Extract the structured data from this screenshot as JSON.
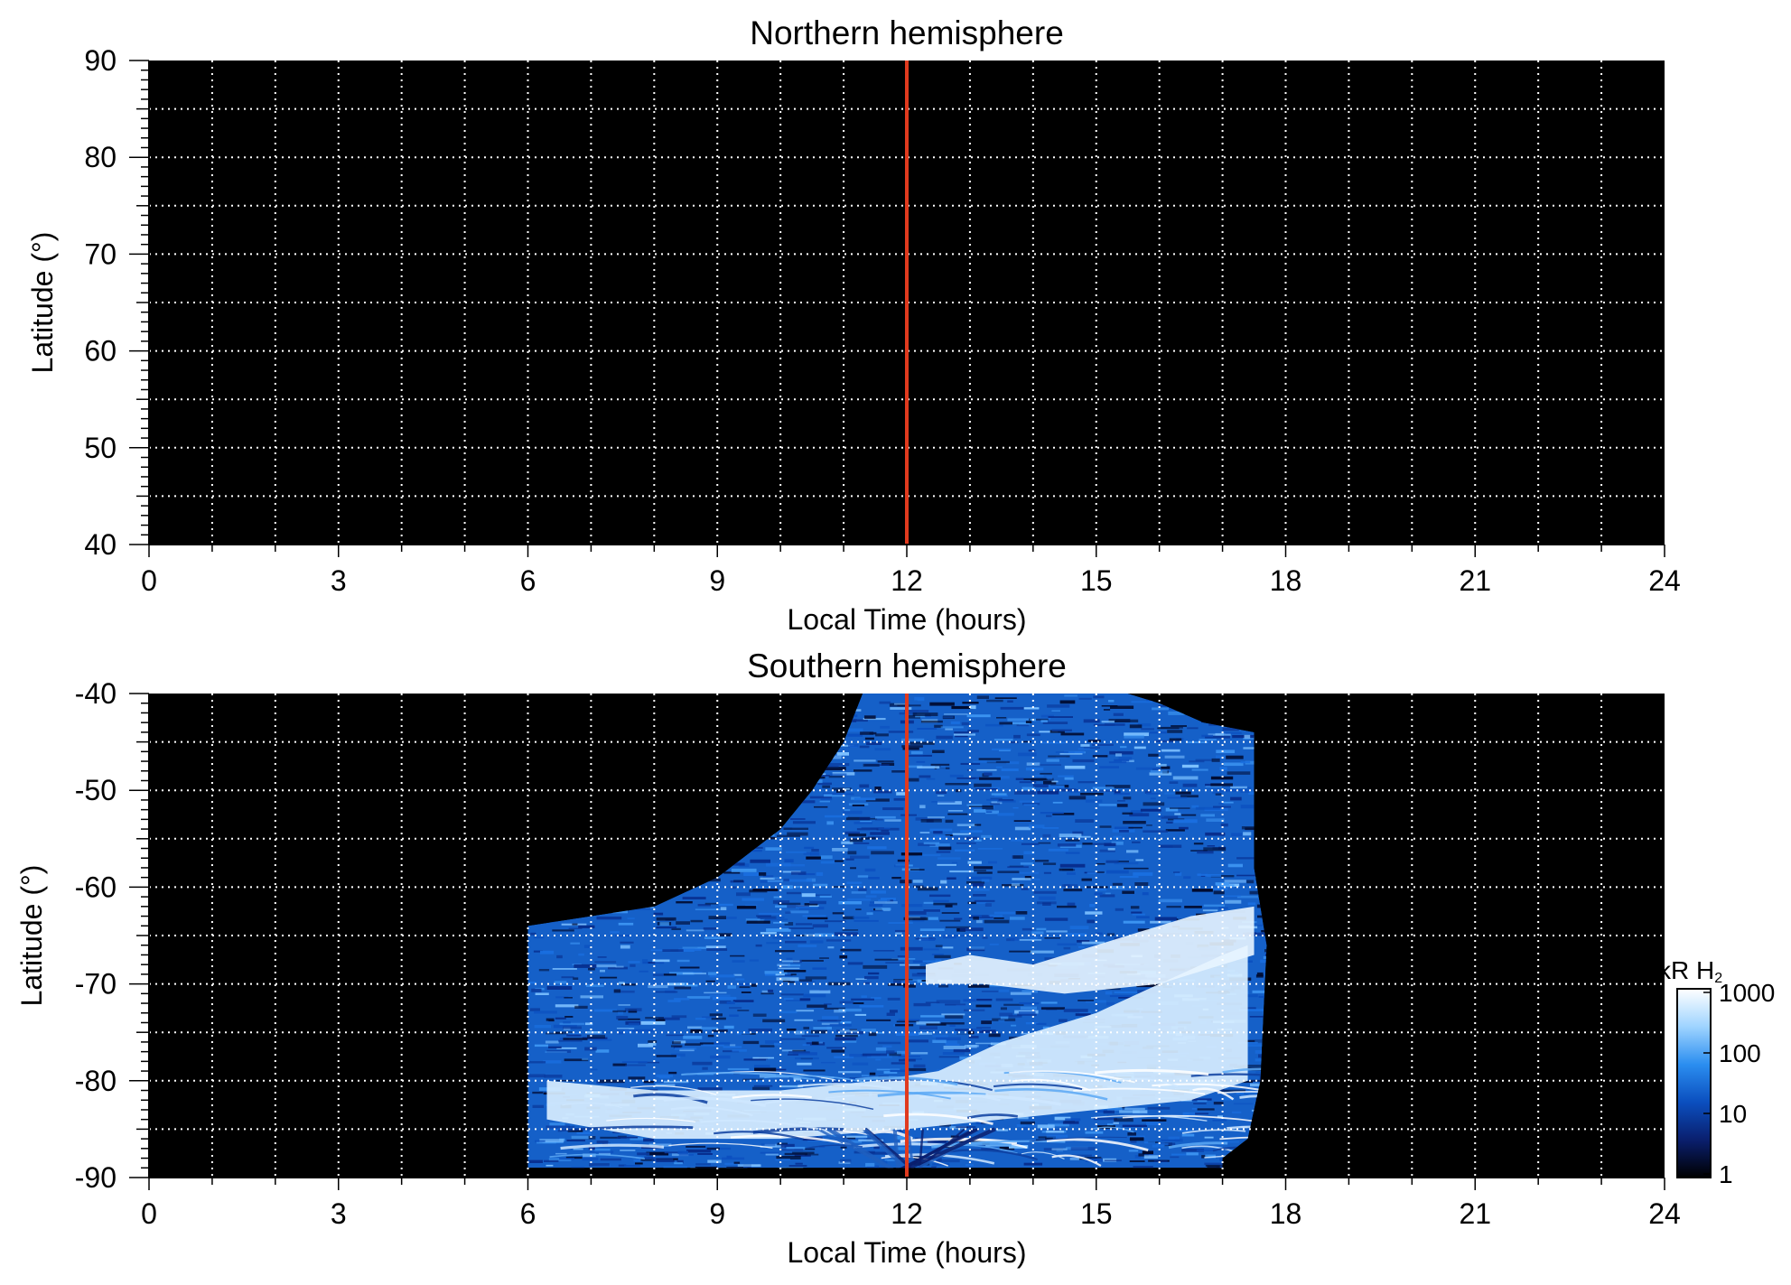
{
  "chart_data": [
    {
      "type": "heatmap",
      "title": "Northern hemisphere",
      "xlabel": "Local Time (hours)",
      "ylabel": "Latitude (°)",
      "xlim": [
        0,
        24
      ],
      "ylim": [
        40,
        90
      ],
      "xticks": [
        "0",
        "3",
        "6",
        "9",
        "12",
        "15",
        "18",
        "21",
        "24"
      ],
      "yticks": [
        "40",
        "50",
        "60",
        "70",
        "80",
        "90"
      ],
      "grid": true,
      "background": "#000000",
      "marker_line": {
        "x": 12,
        "color": "#e03a1e"
      },
      "emission_region": null
    },
    {
      "type": "heatmap",
      "title": "Southern hemisphere",
      "xlabel": "Local Time (hours)",
      "ylabel": "Latitude (°)",
      "xlim": [
        0,
        24
      ],
      "ylim": [
        -90,
        -40
      ],
      "xticks": [
        "0",
        "3",
        "6",
        "9",
        "12",
        "15",
        "18",
        "21",
        "24"
      ],
      "yticks": [
        "-40",
        "-50",
        "-60",
        "-70",
        "-80",
        "-90"
      ],
      "grid": true,
      "background": "#000000",
      "marker_line": {
        "x": 12,
        "color": "#e03a1e"
      },
      "emission_region": {
        "lower_boundary_lat": -89,
        "upper_boundary": [
          [
            6.0,
            -64
          ],
          [
            7.0,
            -63
          ],
          [
            8.0,
            -62
          ],
          [
            9.0,
            -59
          ],
          [
            10.0,
            -54
          ],
          [
            10.5,
            -50
          ],
          [
            11.0,
            -45
          ],
          [
            11.3,
            -40
          ],
          [
            15.5,
            -40
          ],
          [
            16.0,
            -41
          ],
          [
            16.7,
            -43
          ],
          [
            17.5,
            -44
          ],
          [
            17.5,
            -58
          ],
          [
            17.7,
            -66
          ],
          [
            17.6,
            -80
          ],
          [
            17.4,
            -86
          ],
          [
            17.0,
            -88
          ]
        ],
        "bright_band_upper": [
          [
            6.3,
            -80
          ],
          [
            8.0,
            -81
          ],
          [
            10.0,
            -81
          ],
          [
            11.5,
            -80
          ],
          [
            12.5,
            -79
          ],
          [
            13.5,
            -76
          ],
          [
            15.0,
            -73
          ],
          [
            16.0,
            -70
          ],
          [
            17.0,
            -67
          ],
          [
            17.4,
            -66
          ]
        ],
        "bright_band_lower": [
          [
            6.3,
            -84
          ],
          [
            8.0,
            -86
          ],
          [
            10.0,
            -86
          ],
          [
            12.0,
            -85
          ],
          [
            13.5,
            -84
          ],
          [
            15.0,
            -83
          ],
          [
            16.5,
            -82
          ],
          [
            17.4,
            -80
          ]
        ],
        "bright_patch": [
          [
            12.3,
            -68
          ],
          [
            13.0,
            -67
          ],
          [
            14.0,
            -68
          ],
          [
            15.0,
            -66
          ],
          [
            16.5,
            -63
          ],
          [
            17.5,
            -62
          ],
          [
            17.5,
            -67
          ],
          [
            16.0,
            -70
          ],
          [
            14.5,
            -71
          ],
          [
            13.2,
            -70
          ],
          [
            12.3,
            -70
          ]
        ]
      }
    }
  ],
  "colorbar": {
    "title": "kR H",
    "title_subscript": "2",
    "tick_labels": [
      "1",
      "10",
      "100",
      "1000"
    ],
    "tick_values": [
      1,
      10,
      100,
      1000
    ],
    "scale": "log",
    "colors": [
      "#000000",
      "#0a1f6e",
      "#0b4fbf",
      "#2b8ef0",
      "#9fd4ff",
      "#ffffff"
    ]
  }
}
